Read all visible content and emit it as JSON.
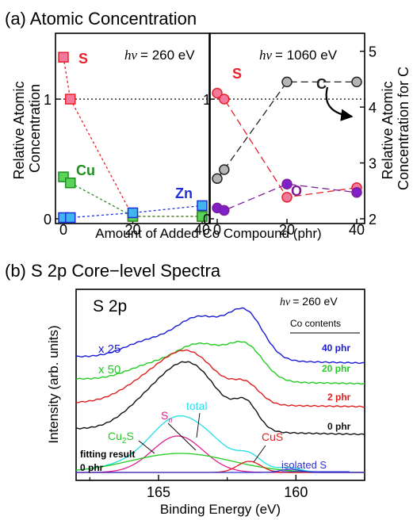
{
  "chart_data": [
    {
      "id": "a",
      "type": "scatter",
      "title": "(a) Atomic Concentration",
      "xlabel": "Amount of Added Co Compound (phr)",
      "panels": [
        {
          "annotation": "hν = 260 eV",
          "hv_symbol": "hν",
          "hv_value": "= 260 eV",
          "xlim": [
            0,
            40
          ],
          "ylim": [
            0,
            1.55
          ],
          "ylabel": [
            "Relative Atomic",
            "Concentration"
          ],
          "yticks": [
            0,
            1
          ],
          "xticks": [
            0,
            20,
            40
          ],
          "reference_line_y": 1,
          "series": [
            {
              "name": "S",
              "color": "#e8212a",
              "fill": "#f27a9c",
              "x": [
                0,
                2,
                20,
                40
              ],
              "y": [
                1.35,
                1.0,
                0.02,
                0.02
              ]
            },
            {
              "name": "Cu",
              "color": "#1f8f1f",
              "fill": "#5bd35b",
              "x": [
                0,
                2,
                20,
                40
              ],
              "y": [
                0.35,
                0.3,
                0.02,
                0.02
              ]
            },
            {
              "name": "Zn",
              "color": "#1f30d9",
              "fill": "#41b6ee",
              "x": [
                0,
                2,
                20,
                40
              ],
              "y": [
                0.01,
                0.01,
                0.05,
                0.11
              ]
            }
          ]
        },
        {
          "annotation": "hν = 1060 eV",
          "hv_symbol": "hν",
          "hv_value": "= 1060 eV",
          "xlim": [
            0,
            40
          ],
          "ylim": [
            0,
            1.55
          ],
          "yticks": [
            0,
            1
          ],
          "xticks": [
            0,
            20,
            40
          ],
          "reference_line_y": 1,
          "y2label": [
            "Relative Atomic",
            "Concentration for C"
          ],
          "y2lim": [
            2,
            5
          ],
          "y2ticks": [
            2,
            3,
            4,
            5
          ],
          "series": [
            {
              "name": "S",
              "axis": "left",
              "color": "#e8212a",
              "fill": "#f27a9c",
              "x": [
                0,
                2,
                20,
                40
              ],
              "y": [
                1.05,
                1.0,
                0.18,
                0.26
              ]
            },
            {
              "name": "C",
              "axis": "right",
              "color": "#222222",
              "fill": "#b5b5b5",
              "x": [
                0,
                2,
                20,
                40
              ],
              "y": [
                2.72,
                2.88,
                4.45,
                4.45
              ]
            },
            {
              "name": "O",
              "axis": "left",
              "color": "#7b1f9a",
              "fill": "#8020c8",
              "x": [
                0,
                2,
                20,
                40
              ],
              "y": [
                0.09,
                0.07,
                0.29,
                0.22
              ]
            }
          ]
        }
      ]
    },
    {
      "id": "b",
      "type": "line",
      "title": "(b) S 2p Core−level Spectra",
      "xlabel": "Binding Energy (eV)",
      "ylabel": "Intensity (arb. units)",
      "xlim": [
        168,
        157.5
      ],
      "xticks": [
        165,
        160
      ],
      "panel_label": "S 2p",
      "hv_symbol": "hν",
      "hv_value": "= 260 eV",
      "legend_title": "Co contents",
      "multipliers": [
        "x 25",
        "x 50"
      ],
      "spectra": [
        {
          "name": "40 phr",
          "color": "#1a1ad6",
          "label_color": "#1a1ad6"
        },
        {
          "name": "20 phr",
          "color": "#22cc22",
          "label_color": "#22cc22"
        },
        {
          "name": "2 phr",
          "color": "#e01e1e",
          "label_color": "#e01e1e"
        },
        {
          "name": "0 phr",
          "color": "#111111",
          "label_color": "#111111"
        }
      ],
      "fitting": {
        "label_line1": "fitting result",
        "label_line2": "0 phr",
        "components": [
          {
            "name": "total",
            "color": "#22e0e8"
          },
          {
            "name": "Sn",
            "color": "#e0208e"
          },
          {
            "name": "Cu2S",
            "color": "#22cc22"
          },
          {
            "name": "CuS",
            "color": "#e01e1e"
          },
          {
            "name": "isolated S",
            "color": "#3030d0"
          }
        ]
      }
    }
  ]
}
